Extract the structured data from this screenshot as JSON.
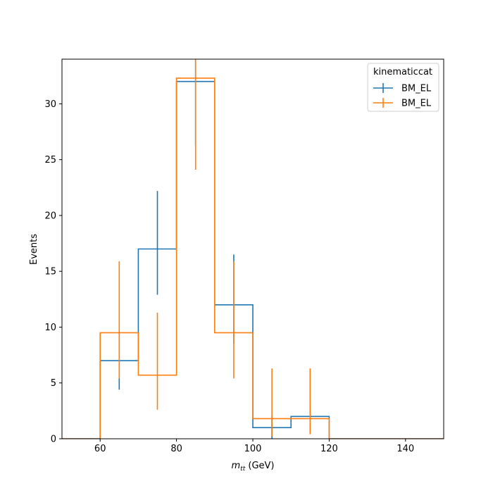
{
  "chart_data": {
    "type": "histogram-step",
    "xlabel_var": "m",
    "xlabel_sub": "tt",
    "xlabel_unit": " (GeV)",
    "ylabel": "Events",
    "xlim": [
      50,
      150
    ],
    "ylim": [
      0,
      34
    ],
    "xticks": [
      60,
      80,
      100,
      120,
      140
    ],
    "yticks": [
      0,
      5,
      10,
      15,
      20,
      25,
      30
    ],
    "bin_edges": [
      50,
      60,
      70,
      80,
      90,
      100,
      110,
      120,
      130,
      140,
      150
    ],
    "legend_title": "kinematiccat",
    "legend_position": "top-right",
    "series": [
      {
        "name": "BM_EL",
        "color": "#1f77b4",
        "values": [
          0,
          7.0,
          17.0,
          32.0,
          12.0,
          1.0,
          2.0,
          0,
          0,
          0
        ],
        "err_low": [
          0,
          2.6,
          4.1,
          5.7,
          3.5,
          1.0,
          1.4,
          0,
          0,
          0
        ],
        "err_high": [
          0,
          2.6,
          5.2,
          5.7,
          4.5,
          1.0,
          1.4,
          0,
          0,
          0
        ]
      },
      {
        "name": "BM_EL",
        "color": "#ff7f0e",
        "values": [
          0,
          9.5,
          5.7,
          32.3,
          9.5,
          1.8,
          1.8,
          0,
          0,
          0
        ],
        "err_low": [
          0,
          4.1,
          3.1,
          8.2,
          4.1,
          1.6,
          1.4,
          0,
          0,
          0
        ],
        "err_high": [
          0,
          6.4,
          5.6,
          8.2,
          6.4,
          4.5,
          4.5,
          0,
          0,
          0
        ]
      }
    ]
  }
}
